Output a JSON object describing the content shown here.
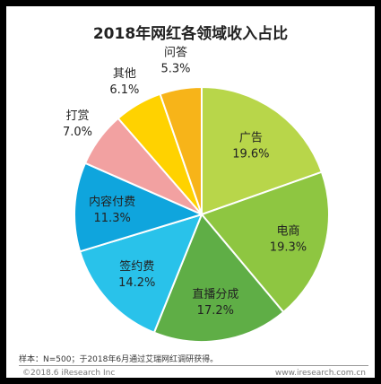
{
  "chart_data": {
    "type": "pie",
    "title": "2018年网红各领域收入占比",
    "slices": [
      {
        "label": "广告",
        "value": 19.6,
        "display": "19.6%",
        "color": "#b8d64a"
      },
      {
        "label": "电商",
        "value": 19.3,
        "display": "19.3%",
        "color": "#8ec641"
      },
      {
        "label": "直播分成",
        "value": 17.2,
        "display": "17.2%",
        "color": "#5fae46"
      },
      {
        "label": "签约费",
        "value": 14.2,
        "display": "14.2%",
        "color": "#29c2ea"
      },
      {
        "label": "内容付费",
        "value": 11.3,
        "display": "11.3%",
        "color": "#0fa5dd"
      },
      {
        "label": "打赏",
        "value": 7.0,
        "display": "7.0%",
        "color": "#f2a1a1"
      },
      {
        "label": "其他",
        "value": 6.1,
        "display": "6.1%",
        "color": "#ffd200"
      },
      {
        "label": "问答",
        "value": 5.3,
        "display": "5.3%",
        "color": "#f7b419"
      }
    ]
  },
  "note": "样本：N=500；于2018年6月通过艾瑞网红调研获得。",
  "footer": {
    "left": "©2018.6 iResearch Inc",
    "right": "www.iresearch.com.cn"
  }
}
